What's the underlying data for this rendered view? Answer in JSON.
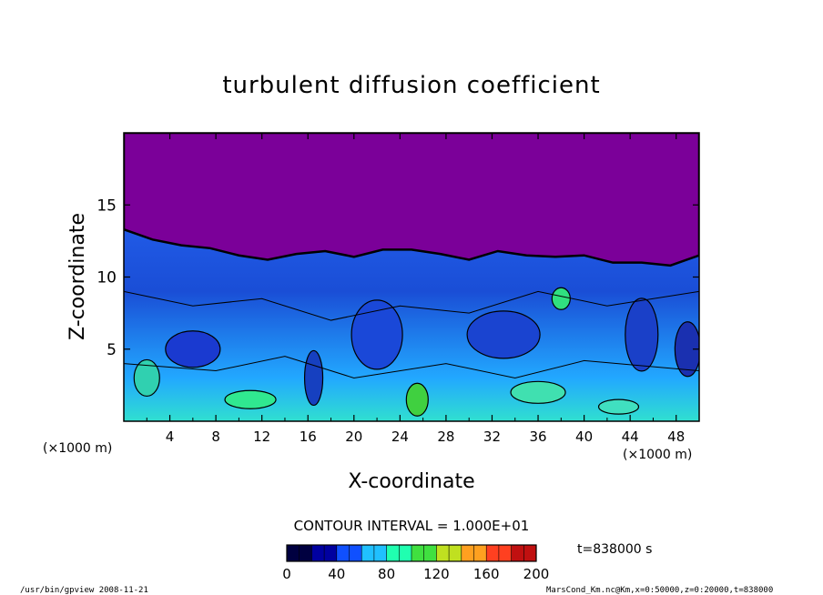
{
  "chart_data": {
    "type": "heatmap",
    "title": "turbulent diffusion coefficient",
    "xlabel": "X-coordinate",
    "ylabel": "Z-coordinate",
    "x_unit": "(×1000 m)",
    "x_unit_right": "(×1000 m)",
    "xlim": [
      0,
      50
    ],
    "ylim": [
      0,
      20
    ],
    "x_ticks": [
      4,
      8,
      12,
      16,
      20,
      24,
      28,
      32,
      36,
      40,
      44,
      48
    ],
    "y_ticks": [
      5,
      10,
      15
    ],
    "contour_interval_label": "CONTOUR INTERVAL = 1.000E+01",
    "time_label": "t=838000 s",
    "colorbar": {
      "min": 0,
      "max": 200,
      "ticks": [
        0,
        40,
        80,
        120,
        160,
        200
      ],
      "colors": [
        "#000040",
        "#0000a0",
        "#1050ff",
        "#20c0ff",
        "#20ffb0",
        "#40e040",
        "#c0e020",
        "#ffa020",
        "#ff4020",
        "#c01010"
      ]
    },
    "boundary_layer_top_z": [
      13.3,
      12.6,
      12.2,
      12.0,
      11.5,
      11.2,
      11.6,
      11.8,
      11.4,
      11.9,
      11.9,
      11.6,
      11.2,
      11.8,
      11.5,
      11.4,
      11.5,
      11.0,
      11.0,
      10.8,
      11.5
    ],
    "boundary_layer_x": [
      0,
      2.5,
      5,
      7.5,
      10,
      12.5,
      15,
      17.5,
      20,
      22.5,
      25,
      27.5,
      30,
      32.5,
      35,
      37.5,
      40,
      42.5,
      45,
      47.5,
      50
    ],
    "upper_region_color": "#7b0099",
    "lower_region_color": "#1c5cd8"
  },
  "footer": {
    "left": "/usr/bin/gpview   2008-11-21",
    "right": "MarsCond_Km.nc@Km,x=0:50000,z=0:20000,t=838000"
  }
}
